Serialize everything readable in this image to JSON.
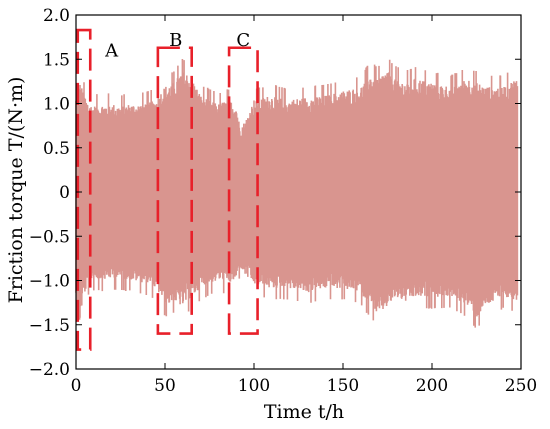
{
  "chart_data": {
    "type": "area",
    "title": "",
    "xlabel": "Time t/h",
    "ylabel": "Friction torque T/(N·m)",
    "xlim": [
      0,
      250
    ],
    "ylim": [
      -2.0,
      2.0
    ],
    "xticks": [
      0,
      50,
      100,
      150,
      200,
      250
    ],
    "yticks": [
      -2.0,
      -1.5,
      -1.0,
      -0.5,
      0,
      0.5,
      1.0,
      1.5,
      2.0
    ],
    "ytick_labels": [
      "−2.0",
      "−1.5",
      "−1.0",
      "−0.5",
      "0",
      "0.5",
      "1.0",
      "1.5",
      "2.0"
    ],
    "grid": false,
    "series": [
      {
        "color": "#d9958f",
        "envelope": {
          "t": [
            0,
            2,
            4,
            6,
            8,
            10,
            15,
            20,
            25,
            30,
            35,
            40,
            45,
            48,
            50,
            55,
            60,
            65,
            70,
            75,
            80,
            85,
            90,
            92,
            95,
            100,
            110,
            120,
            130,
            140,
            150,
            160,
            165,
            170,
            175,
            180,
            185,
            190,
            200,
            210,
            220,
            225,
            230,
            240,
            248
          ],
          "upper": [
            1.1,
            1.25,
            1.15,
            1.05,
            1.0,
            0.98,
            1.0,
            1.0,
            0.98,
            1.0,
            1.0,
            1.02,
            1.05,
            1.15,
            1.2,
            1.25,
            1.4,
            1.3,
            1.1,
            1.05,
            1.0,
            1.05,
            1.0,
            0.75,
            0.8,
            1.05,
            1.1,
            1.05,
            1.08,
            1.1,
            1.15,
            1.2,
            1.35,
            1.3,
            1.4,
            1.3,
            1.25,
            1.3,
            1.25,
            1.2,
            1.3,
            1.25,
            1.2,
            1.2,
            1.3
          ],
          "lower": [
            -1.3,
            -1.5,
            -1.2,
            -1.1,
            -1.0,
            -1.0,
            -1.0,
            -0.98,
            -1.0,
            -1.0,
            -1.02,
            -1.05,
            -1.1,
            -1.2,
            -1.3,
            -1.25,
            -1.3,
            -1.2,
            -1.1,
            -1.05,
            -1.0,
            -1.05,
            -1.0,
            -0.85,
            -0.95,
            -1.05,
            -1.1,
            -1.1,
            -1.15,
            -1.1,
            -1.1,
            -1.15,
            -1.3,
            -1.4,
            -1.3,
            -1.2,
            -1.25,
            -1.2,
            -1.2,
            -1.2,
            -1.3,
            -1.45,
            -1.3,
            -1.2,
            -1.25
          ]
        }
      }
    ],
    "annotations": [
      {
        "label": "A",
        "x0": 1,
        "x1": 8,
        "y0": -1.78,
        "y1": 1.83,
        "label_x": 20,
        "label_y": 1.6
      },
      {
        "label": "B",
        "x0": 46,
        "x1": 65,
        "y0": -1.6,
        "y1": 1.63,
        "label_x": 56,
        "label_y": 1.72
      },
      {
        "label": "C",
        "x0": 86,
        "x1": 102,
        "y0": -1.6,
        "y1": 1.63,
        "label_x": 94,
        "label_y": 1.72
      }
    ],
    "annotation_color": "#e8202a"
  }
}
